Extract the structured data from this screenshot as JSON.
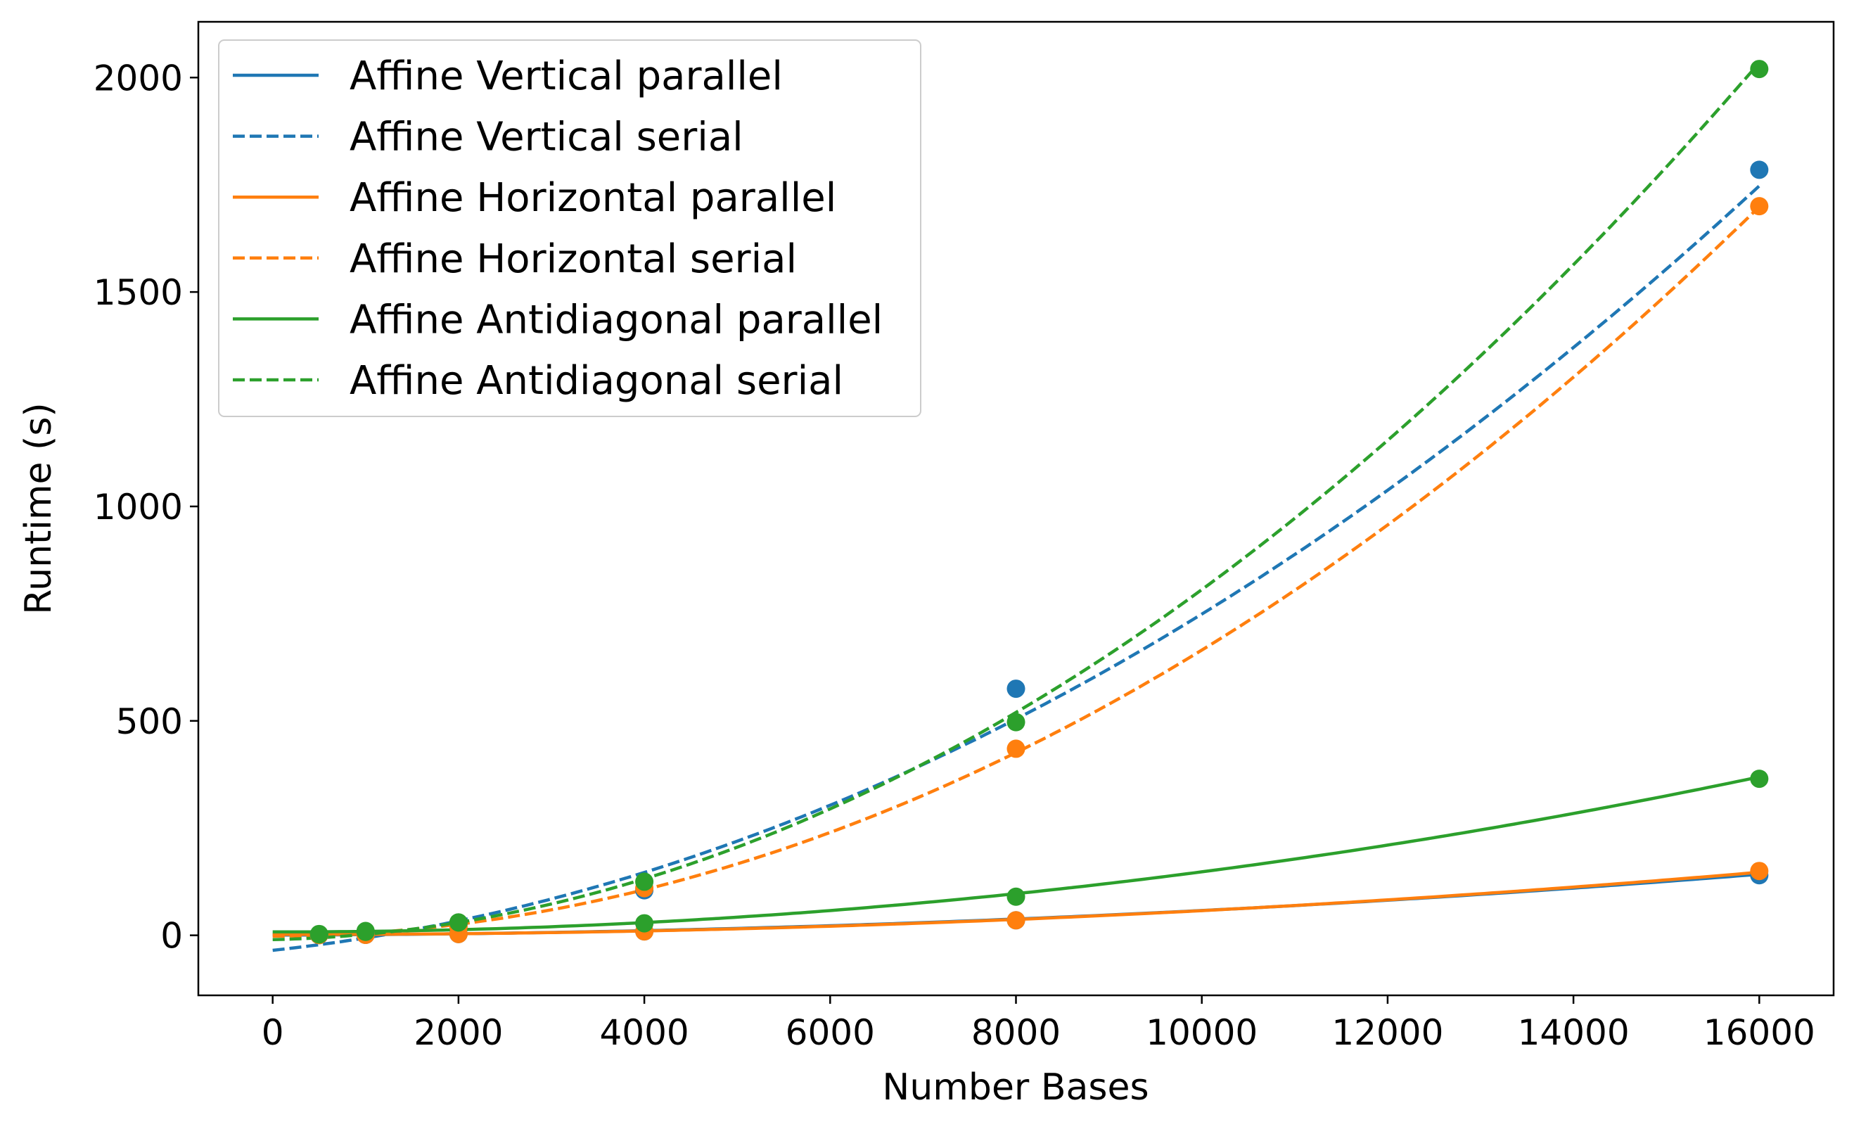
{
  "chart_data": {
    "type": "line",
    "title": "",
    "xlabel": "Number Bases",
    "ylabel": "Runtime (s)",
    "xlim": [
      -800,
      16800
    ],
    "ylim": [
      -140,
      2130
    ],
    "xticks": [
      0,
      2000,
      4000,
      6000,
      8000,
      10000,
      12000,
      14000,
      16000
    ],
    "yticks": [
      0,
      500,
      1000,
      1500,
      2000
    ],
    "grid": false,
    "legend_position": "top-left",
    "colors": {
      "vertical": "#1f77b4",
      "horizontal": "#ff7f0e",
      "antidiagonal": "#2ca02c"
    },
    "series": [
      {
        "name": "Affine Vertical parallel",
        "color": "#1f77b4",
        "dash": "solid",
        "x": [
          500,
          1000,
          2000,
          4000,
          8000,
          16000
        ],
        "y": [
          0.5,
          1,
          3,
          9,
          35,
          140
        ],
        "fit": [
          5.23e-07,
          0.0005,
          0.5
        ]
      },
      {
        "name": "Affine Vertical serial",
        "color": "#1f77b4",
        "dash": "dashed",
        "x": [
          500,
          1000,
          2000,
          4000,
          8000,
          16000
        ],
        "y": [
          2,
          5,
          25,
          105,
          575,
          1785
        ],
        "fit": [
          5.5e-06,
          0.0234,
          -35
        ]
      },
      {
        "name": "Affine Horizontal parallel",
        "color": "#ff7f0e",
        "dash": "solid",
        "x": [
          500,
          1000,
          2000,
          4000,
          8000,
          16000
        ],
        "y": [
          0.5,
          1,
          3,
          9,
          35,
          150
        ],
        "fit": [
          5.85e-07,
          -0.0003,
          2
        ]
      },
      {
        "name": "Affine Horizontal serial",
        "color": "#ff7f0e",
        "dash": "dashed",
        "x": [
          500,
          1000,
          2000,
          4000,
          8000,
          16000
        ],
        "y": [
          2,
          5,
          20,
          110,
          435,
          1700
        ],
        "fit": [
          6.6e-06,
          0.0007,
          -2
        ]
      },
      {
        "name": "Affine Antidiagonal parallel",
        "color": "#2ca02c",
        "dash": "solid",
        "x": [
          500,
          1000,
          2000,
          4000,
          8000,
          16000
        ],
        "y": [
          3,
          8,
          30,
          28,
          90,
          365
        ],
        "fit": [
          1.43e-06,
          -0.0003,
          8
        ]
      },
      {
        "name": "Affine Antidiagonal serial",
        "color": "#2ca02c",
        "dash": "dashed",
        "x": [
          500,
          1000,
          2000,
          4000,
          8000,
          16000
        ],
        "y": [
          2,
          10,
          30,
          125,
          497,
          2020
        ],
        "fit": [
          7.7e-06,
          0.0046,
          -10
        ]
      }
    ]
  }
}
